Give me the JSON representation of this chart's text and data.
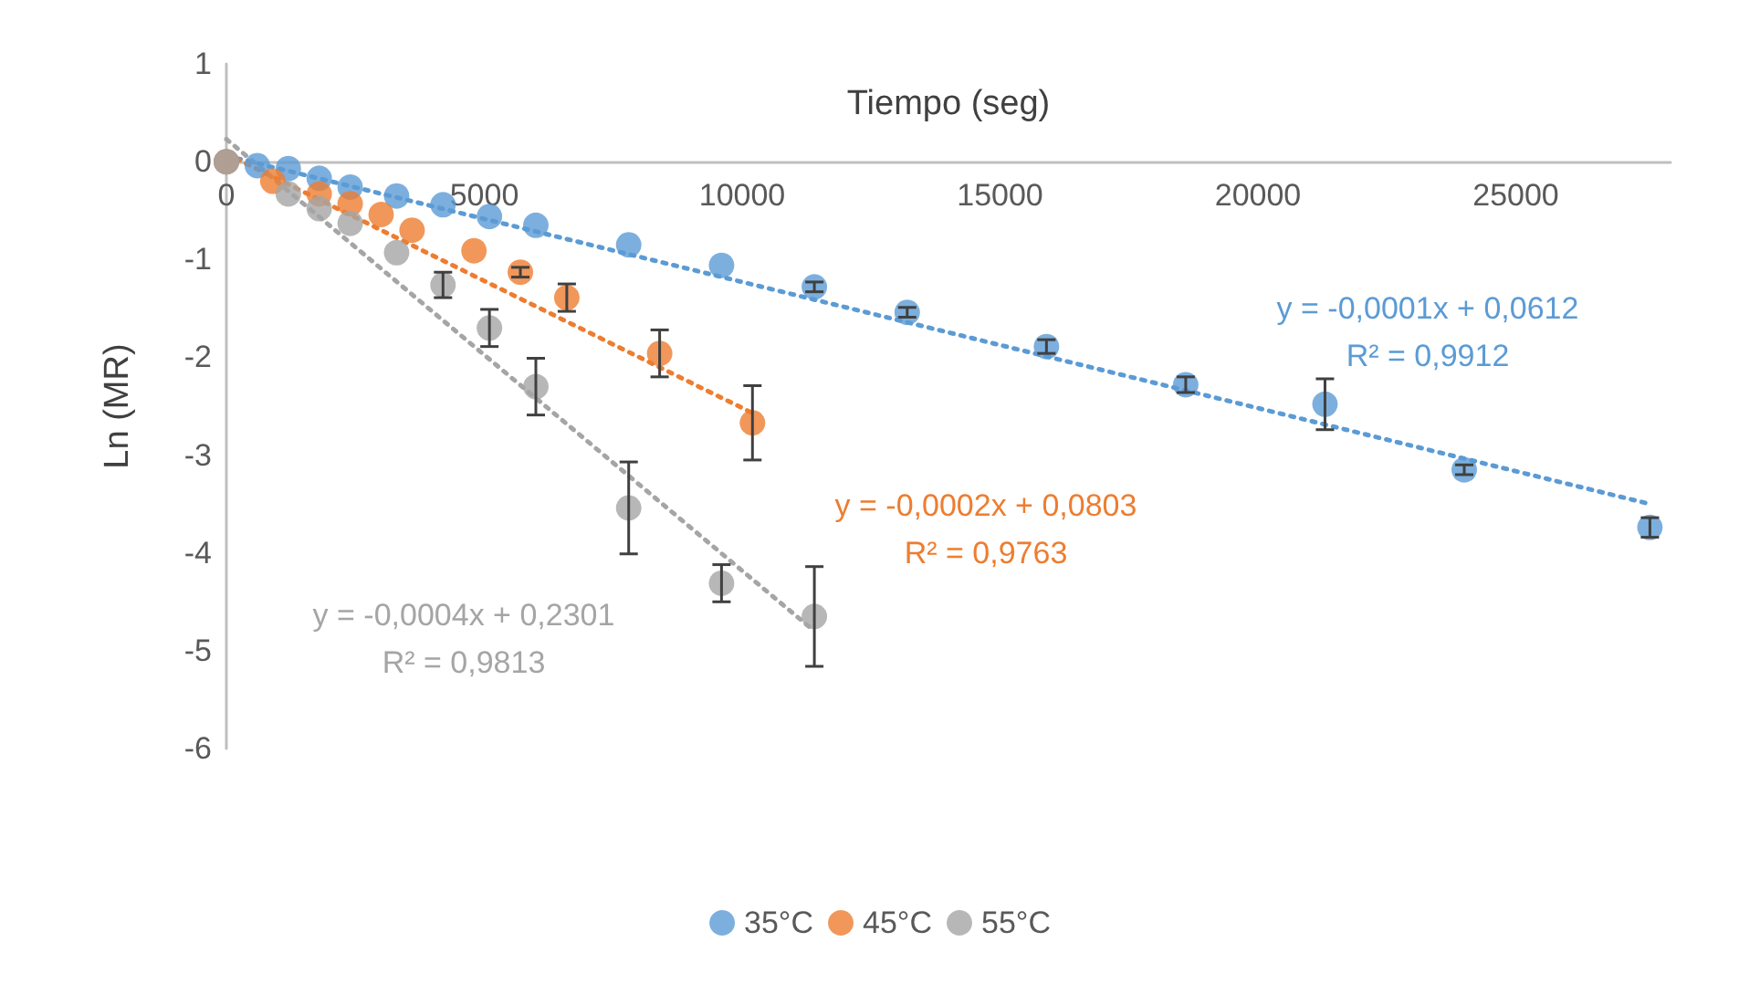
{
  "chart_data": {
    "type": "scatter",
    "xlabel": "Tiempo (seg)",
    "ylabel": "Ln (MR)",
    "xlim": [
      0,
      28000
    ],
    "xticks": [
      0,
      5000,
      10000,
      15000,
      20000,
      25000
    ],
    "ylim": [
      -6,
      1
    ],
    "yticks": [
      -6,
      -5,
      -4,
      -3,
      -2,
      -1,
      0,
      1
    ],
    "grid": false,
    "legend": "bottom",
    "marker": "circle",
    "series": [
      {
        "name": "35°C",
        "color": "#5b9bd5",
        "x": [
          0,
          600,
          1200,
          1800,
          2400,
          3300,
          4200,
          5100,
          6000,
          7800,
          9600,
          11400,
          13200,
          15900,
          18600,
          21300,
          24000,
          27600
        ],
        "values": [
          0,
          -0.04,
          -0.07,
          -0.17,
          -0.26,
          -0.35,
          -0.44,
          -0.56,
          -0.65,
          -0.85,
          -1.06,
          -1.28,
          -1.54,
          -1.89,
          -2.28,
          -2.48,
          -3.15,
          -3.74
        ],
        "errors": [
          null,
          null,
          null,
          null,
          null,
          null,
          null,
          null,
          null,
          null,
          null,
          0.05,
          0.05,
          0.07,
          0.08,
          0.26,
          0.05,
          0.1
        ]
      },
      {
        "name": "45°C",
        "color": "#ed7d31",
        "x": [
          0,
          900,
          1800,
          2400,
          3000,
          3600,
          4800,
          5700,
          6600,
          8400,
          10200
        ],
        "values": [
          0,
          -0.2,
          -0.33,
          -0.43,
          -0.54,
          -0.7,
          -0.91,
          -1.13,
          -1.39,
          -1.96,
          -2.67
        ],
        "errors": [
          null,
          null,
          null,
          null,
          null,
          null,
          null,
          0.05,
          0.14,
          0.24,
          0.38
        ]
      },
      {
        "name": "55°C",
        "color": "#a5a5a5",
        "x": [
          0,
          1200,
          1800,
          2400,
          3300,
          4200,
          5100,
          6000,
          7800,
          9600,
          11400
        ],
        "values": [
          0,
          -0.33,
          -0.48,
          -0.63,
          -0.93,
          -1.26,
          -1.7,
          -2.3,
          -3.54,
          -4.31,
          -4.65
        ],
        "errors": [
          null,
          null,
          null,
          null,
          null,
          0.13,
          0.19,
          0.29,
          0.47,
          0.19,
          0.51
        ]
      },
      {
        "type": "line",
        "color": "#5b9bd5",
        "line_style": "dotted",
        "marker": "none",
        "x": [
          0,
          27600
        ],
        "values": [
          0.06,
          -3.5
        ]
      },
      {
        "type": "line",
        "color": "#ed7d31",
        "line_style": "dotted",
        "marker": "none",
        "x": [
          0,
          10200
        ],
        "values": [
          0.08,
          -2.57
        ]
      },
      {
        "type": "line",
        "color": "#a5a5a5",
        "line_style": "dotted",
        "marker": "none",
        "x": [
          0,
          11400
        ],
        "values": [
          0.23,
          -4.8
        ]
      }
    ],
    "annotations": [
      "y = -0,0001x + 0,0612\nR² = 0,9912",
      "y = -0,0002x + 0,0803\nR² = 0,9763",
      "y = -0,0004x + 0,2301\nR² = 0,9813"
    ]
  }
}
